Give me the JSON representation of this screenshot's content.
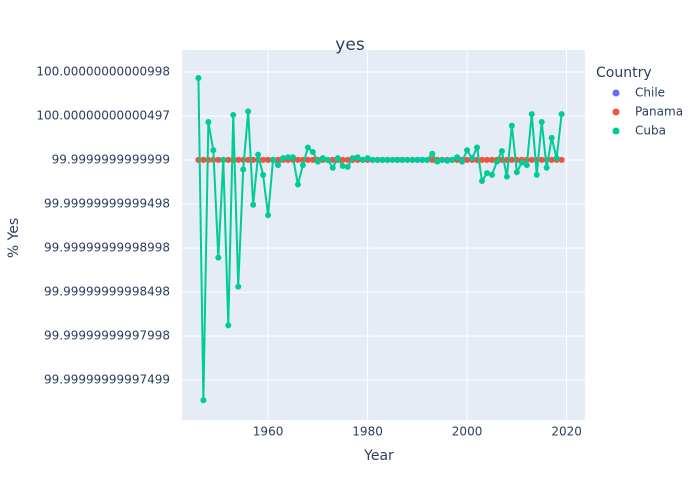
{
  "chart_data": {
    "type": "line",
    "title": "yes",
    "x_label": "Year",
    "y_label": "% Yes",
    "legend_title": "Country",
    "x": [
      1946,
      1947,
      1948,
      1949,
      1950,
      1951,
      1952,
      1953,
      1954,
      1955,
      1956,
      1957,
      1958,
      1959,
      1960,
      1961,
      1962,
      1963,
      1964,
      1965,
      1966,
      1967,
      1968,
      1969,
      1970,
      1971,
      1972,
      1973,
      1974,
      1975,
      1976,
      1977,
      1978,
      1979,
      1980,
      1981,
      1982,
      1983,
      1984,
      1985,
      1986,
      1987,
      1988,
      1989,
      1990,
      1991,
      1992,
      1993,
      1994,
      1995,
      1996,
      1997,
      1998,
      1999,
      2000,
      2001,
      2002,
      2003,
      2004,
      2005,
      2006,
      2007,
      2008,
      2009,
      2010,
      2011,
      2012,
      2013,
      2014,
      2015,
      2016,
      2017,
      2018,
      2019
    ],
    "series": [
      {
        "name": "Chile",
        "color": "#636efa",
        "mode": "markers",
        "values": [
          100,
          100,
          100,
          100,
          100,
          100,
          100,
          100,
          100,
          100,
          100,
          100,
          100,
          100,
          100,
          100,
          100,
          100,
          100,
          100,
          100,
          100,
          100,
          100,
          100,
          100,
          100,
          100,
          100,
          100,
          100,
          100,
          100,
          100,
          100,
          100,
          100,
          100,
          100,
          100,
          100,
          100,
          100,
          100,
          100,
          100,
          100,
          100,
          100,
          100,
          100,
          100,
          100,
          100,
          100,
          100,
          100,
          100,
          100,
          100,
          100,
          100,
          100,
          100,
          100,
          100,
          100,
          100,
          100,
          100,
          100,
          100,
          100,
          100
        ]
      },
      {
        "name": "Panama",
        "color": "#ef553b",
        "mode": "markers",
        "values": [
          100,
          100,
          100,
          100,
          100,
          100,
          100,
          100,
          100,
          100,
          100,
          100,
          100,
          100,
          100,
          100,
          100,
          100,
          100,
          100,
          100,
          100,
          100,
          100,
          100,
          100,
          100,
          100,
          100,
          100,
          100,
          100,
          100,
          100,
          100,
          100,
          100,
          100,
          100,
          100,
          100,
          100,
          100,
          100,
          100,
          100,
          100,
          100,
          100,
          100,
          100,
          100,
          100,
          100,
          100,
          100,
          100,
          100,
          100,
          100,
          100,
          100,
          100,
          100,
          100,
          100,
          100,
          100,
          100,
          100,
          100,
          100,
          100,
          100
        ]
      },
      {
        "name": "Cuba",
        "color": "#00cc96",
        "mode": "lines+markers",
        "values": [
          100.0000000000093,
          99.9999999999727,
          100.0000000000043,
          100.0000000000011,
          99.9999999999889,
          100,
          99.9999999999812,
          100.0000000000051,
          99.9999999999856,
          99.9999999999989,
          100.0000000000055,
          99.9999999999949,
          100.0000000000006,
          99.9999999999983,
          99.9999999999937,
          100,
          99.9999999999994,
          100.0000000000002,
          100.0000000000003,
          100.0000000000003,
          99.9999999999972,
          99.9999999999994,
          100.0000000000014,
          100.0000000000009,
          99.9999999999998,
          100.0000000000002,
          100,
          99.9999999999991,
          100.0000000000002,
          99.9999999999993,
          99.9999999999992,
          100.0000000000002,
          100.0000000000003,
          100,
          100.0000000000002,
          100,
          100,
          100,
          100,
          100,
          100,
          100,
          100,
          100,
          100,
          100,
          100,
          100.0000000000007,
          99.9999999999998,
          100,
          99.9999999999999,
          100,
          100.0000000000003,
          99.9999999999998,
          100.0000000000011,
          100.0000000000002,
          100.0000000000014,
          99.9999999999976,
          99.9999999999985,
          99.9999999999983,
          99.9999999999998,
          100.000000000001,
          99.9999999999981,
          100.0000000000039,
          99.9999999999986,
          99.9999999999997,
          99.9999999999994,
          100.0000000000052,
          99.9999999999983,
          100.0000000000043,
          99.9999999999991,
          100.0000000000025,
          100.0000000000002,
          100.0000000000052
        ]
      }
    ],
    "xlim": [
      1942.7,
      2023.7
    ],
    "xticks": [
      1960,
      1980,
      2000,
      2020
    ],
    "ylim": [
      99.99999999997046,
      100.00000000001248
    ],
    "yticks": [
      {
        "value": 99.99999999997499,
        "label": "99.99999999997499"
      },
      {
        "value": 99.99999999997998,
        "label": "99.99999999997998"
      },
      {
        "value": 99.99999999998498,
        "label": "99.99999999998498"
      },
      {
        "value": 99.99999999998998,
        "label": "99.99999999998998"
      },
      {
        "value": 99.99999999999498,
        "label": "99.99999999999498"
      },
      {
        "value": 99.99999999999999,
        "label": "99.9999999999999"
      },
      {
        "value": 100.00000000000497,
        "label": "100.00000000000497"
      },
      {
        "value": 100.00000000000998,
        "label": "100.00000000000998"
      }
    ],
    "grid": true,
    "legend_position": "right"
  }
}
